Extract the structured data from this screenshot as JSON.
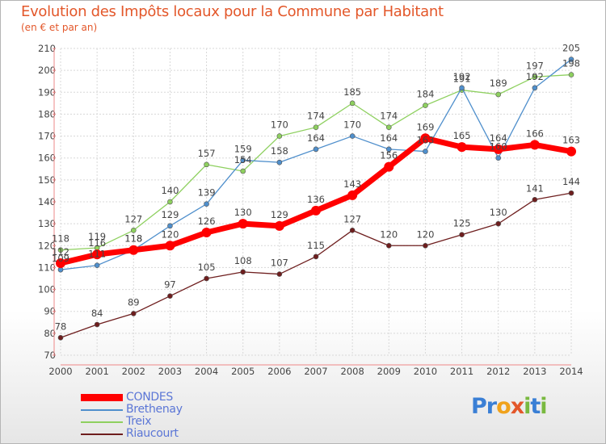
{
  "header": {
    "title": "Evolution des Impôts locaux pour la Commune par Habitant",
    "subtitle": "(en € et par an)"
  },
  "logo": {
    "letters": [
      "P",
      "r",
      "o",
      "x",
      "i",
      "t",
      "i"
    ],
    "colors": [
      "#3a7fd5",
      "#3a7fd5",
      "#f0a21c",
      "#e3572a",
      "#79b940",
      "#3a7fd5",
      "#79b940"
    ]
  },
  "chart_data": {
    "type": "line",
    "title": "Evolution des Impôts locaux pour la Commune par Habitant",
    "subtitle": "(en € et par an)",
    "xlabel": "",
    "ylabel": "",
    "ylim": [
      70,
      210
    ],
    "yticks": [
      70,
      80,
      90,
      100,
      110,
      120,
      130,
      140,
      150,
      160,
      170,
      180,
      190,
      200,
      210
    ],
    "x": [
      "2000",
      "2001",
      "2002",
      "2003",
      "2004",
      "2005",
      "2006",
      "2007",
      "2008",
      "2009",
      "2010",
      "2011",
      "2012",
      "2013",
      "2014"
    ],
    "grid": true,
    "legend_position": "bottom-left",
    "series": [
      {
        "name": "Riaucourt",
        "color": "#6e1e1e",
        "values": [
          78,
          84,
          89,
          97,
          105,
          108,
          107,
          115,
          127,
          120,
          120,
          125,
          130,
          141,
          144
        ],
        "labels": [
          "78",
          "84",
          "89",
          "97",
          "105",
          "108",
          "107",
          "115",
          "127",
          "120",
          "120",
          "125",
          "130",
          "141",
          "144"
        ]
      },
      {
        "name": "Treix",
        "color": "#8ed05f",
        "values": [
          118,
          119,
          127,
          140,
          157,
          154,
          170,
          174,
          185,
          174,
          184,
          191,
          189,
          197,
          198
        ],
        "labels": [
          "118",
          "119",
          "127",
          "140",
          "157",
          "154",
          "170",
          "174",
          "185",
          "174",
          "184",
          "191",
          "189",
          "197",
          "198"
        ]
      },
      {
        "name": "Brethenay",
        "color": "#4f8fcc",
        "values": [
          109,
          111,
          118,
          129,
          139,
          159,
          158,
          164,
          170,
          164,
          163,
          192,
          160,
          192,
          205
        ],
        "labels": [
          "109",
          "111",
          "118",
          "129",
          "139",
          "159",
          "158",
          "164",
          "170",
          "164",
          "163",
          "192",
          "160",
          "192",
          "205"
        ]
      },
      {
        "name": "CONDES",
        "color": "#ff0000",
        "values": [
          112,
          116,
          118,
          120,
          126,
          130,
          129,
          136,
          143,
          156,
          169,
          165,
          164,
          166,
          163
        ],
        "labels": [
          "112",
          "116",
          "118",
          "120",
          "126",
          "130",
          "129",
          "136",
          "143",
          "156",
          "169",
          "165",
          "164",
          "166",
          "163"
        ]
      }
    ]
  }
}
